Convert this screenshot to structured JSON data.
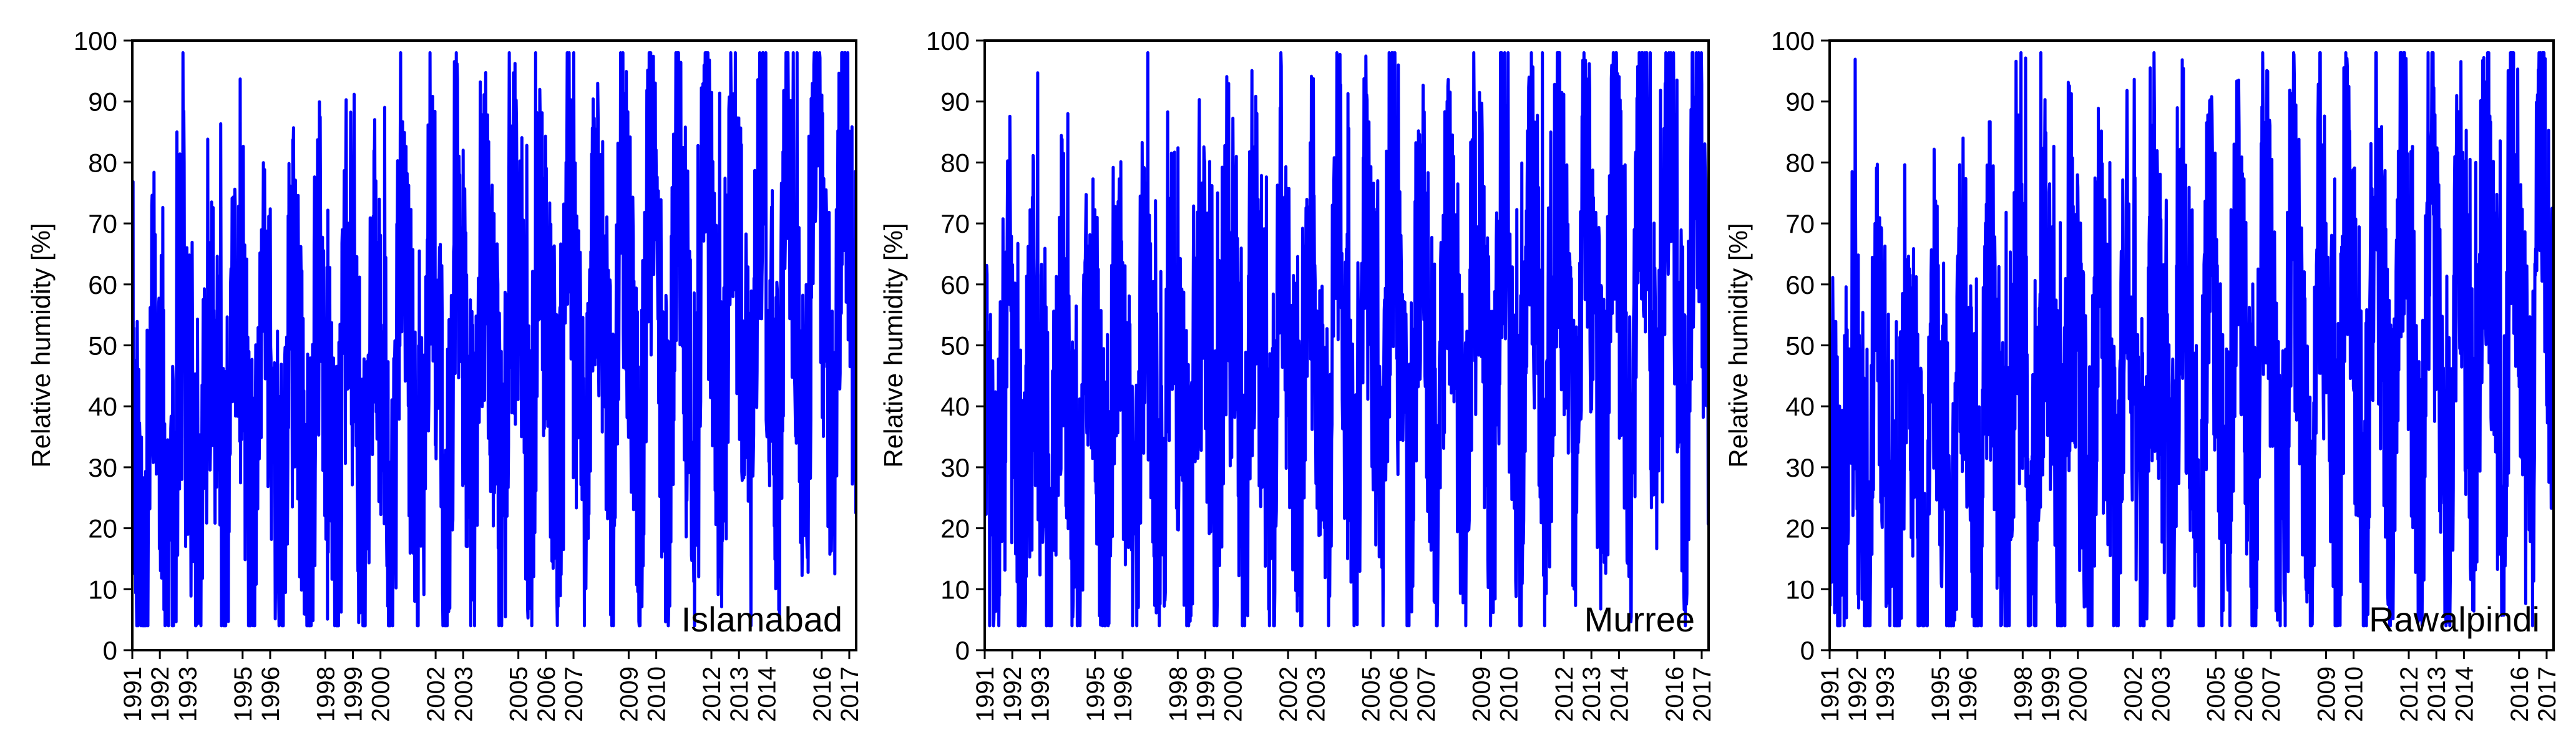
{
  "chart_data": [
    {
      "type": "line",
      "station_label": "Islamabad",
      "ylabel": "Relative humidity [%]",
      "ylim": [
        0,
        100
      ],
      "yticks": [
        0,
        10,
        20,
        30,
        40,
        50,
        60,
        70,
        80,
        90,
        100
      ],
      "xlim": [
        1991.0,
        2017.25
      ],
      "xticks": [
        "1991",
        "1992",
        "1993",
        "1995",
        "1996",
        "1998",
        "1999",
        "2000",
        "2002",
        "2003",
        "2005",
        "2006",
        "2007",
        "2009",
        "2010",
        "2012",
        "2013",
        "2014",
        "2016",
        "2017"
      ],
      "series": [
        {
          "color": "#0000ff",
          "pattern": "seasonal",
          "level_from": [
            33,
            23
          ],
          "level_to": [
            60,
            45
          ],
          "amplitude": [
            29,
            41
          ],
          "seed": 11
        }
      ]
    },
    {
      "type": "line",
      "station_label": "Murree",
      "ylabel": "Relative humidity [%]",
      "ylim": [
        0,
        100
      ],
      "yticks": [
        0,
        10,
        20,
        30,
        40,
        50,
        60,
        70,
        80,
        90,
        100
      ],
      "xlim": [
        1991.0,
        2017.25
      ],
      "xticks": [
        "1991",
        "1992",
        "1993",
        "1995",
        "1996",
        "1998",
        "1999",
        "2000",
        "2002",
        "2003",
        "2005",
        "2006",
        "2007",
        "2009",
        "2010",
        "2012",
        "2013",
        "2014",
        "2016",
        "2017"
      ],
      "series": [
        {
          "color": "#0000ff",
          "pattern": "seasonal",
          "level_from": [
            34,
            24
          ],
          "level_to": [
            60,
            46
          ],
          "amplitude": [
            30,
            41
          ],
          "seed": 29
        }
      ]
    },
    {
      "type": "line",
      "station_label": "Rawalpindi",
      "ylabel": "Relative humidity [%]",
      "ylim": [
        0,
        100
      ],
      "yticks": [
        0,
        10,
        20,
        30,
        40,
        50,
        60,
        70,
        80,
        90,
        100
      ],
      "xlim": [
        1991.0,
        2017.25
      ],
      "xticks": [
        "1991",
        "1992",
        "1993",
        "1995",
        "1996",
        "1998",
        "1999",
        "2000",
        "2002",
        "2003",
        "2005",
        "2006",
        "2007",
        "2009",
        "2010",
        "2012",
        "2013",
        "2014",
        "2016",
        "2017"
      ],
      "series": [
        {
          "color": "#0000ff",
          "pattern": "seasonal",
          "level_from": [
            32,
            22
          ],
          "level_to": [
            55,
            42
          ],
          "amplitude": [
            30,
            42
          ],
          "seed": 47
        }
      ]
    }
  ]
}
